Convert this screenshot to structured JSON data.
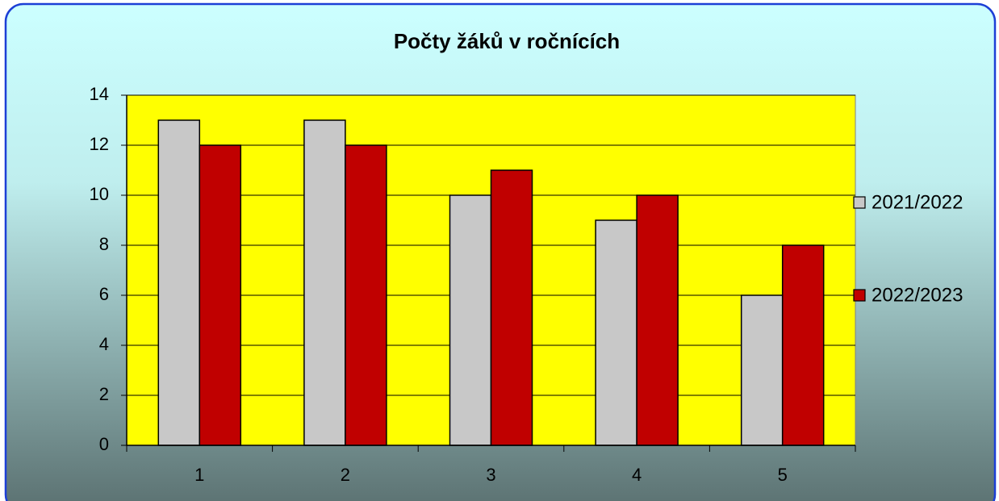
{
  "chart_data": {
    "type": "bar",
    "title": "Počty žáků v ročnících",
    "categories": [
      "1",
      "2",
      "3",
      "4",
      "5"
    ],
    "series": [
      {
        "name": "2021/2022",
        "color": "#c8c8c8",
        "values": [
          13,
          13,
          10,
          9,
          6
        ]
      },
      {
        "name": "2022/2023",
        "color": "#c00000",
        "values": [
          12,
          12,
          11,
          10,
          8
        ]
      }
    ],
    "ylim": [
      0,
      14
    ],
    "yticks": [
      0,
      2,
      4,
      6,
      8,
      10,
      12,
      14
    ],
    "grid": true,
    "plot_background": "#ffff00",
    "legend": "right"
  }
}
